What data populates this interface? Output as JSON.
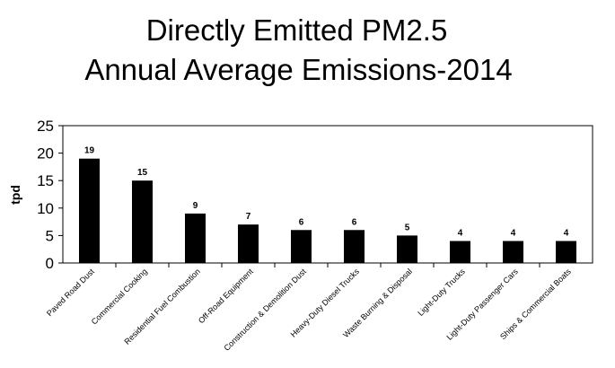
{
  "chart_data": {
    "type": "bar",
    "title_line1": "Directly Emitted PM2.5",
    "title_line2": "Annual Average Emissions-2014",
    "ylabel": "tpd",
    "xlabel": "",
    "ylim": [
      0,
      25
    ],
    "yticks": [
      "0",
      "5",
      "10",
      "15",
      "20",
      "25"
    ],
    "grid": false,
    "legend": "none",
    "bar_color": "#000000",
    "categories": [
      "Paved Road Dust",
      "Commercial Cooking",
      "Residential Fuel Combustion",
      "Off-Road Equipment",
      "Construction & Demolition Dust",
      "Heavy-Duty Diesel Trucks",
      "Waste Burning & Disposal",
      "Light-Duty Trucks",
      "Light-Duty Passenger Cars",
      "Ships & Commercial Boats"
    ],
    "values": [
      19,
      15,
      9,
      7,
      6,
      6,
      5,
      4,
      4,
      4
    ],
    "data_labels": [
      "19",
      "15",
      "9",
      "7",
      "6",
      "6",
      "5",
      "4",
      "4",
      "4"
    ]
  }
}
